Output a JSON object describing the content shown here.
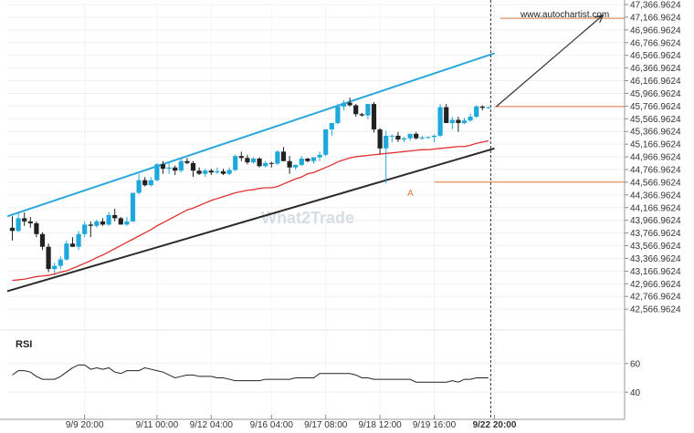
{
  "source_text": "www.autochartist.com",
  "watermark_text": "What2Trade",
  "rsi_label": "RSI",
  "rsi_ticks": [
    "60",
    "40"
  ],
  "colors": {
    "bull": "#1ea8dc",
    "bear": "#222222",
    "resistance": "#2aa8dc",
    "support": "#2b2b2b",
    "moving_average": "#e03030",
    "level": "#e2793a",
    "rsi_line": "#222222",
    "forecast_arrow": "#333333"
  },
  "chart_data": {
    "type": "candlestick",
    "title": "",
    "y_tick_labels": [
      "47,366.9624",
      "47,166.9624",
      "46,966.9624",
      "46,766.9624",
      "46,566.9624",
      "46,366.9624",
      "46,166.9624",
      "45,966.9624",
      "45,766.9624",
      "45,566.9624",
      "45,366.9624",
      "45,166.9624",
      "44,966.9624",
      "44,766.9624",
      "44,566.9624",
      "44,366.9624",
      "44,166.9624",
      "43,966.9624",
      "43,766.9624",
      "43,566.9624",
      "43,366.9624",
      "43,166.9624",
      "42,966.9624",
      "42,766.9624",
      "42,566.9624"
    ],
    "y_tick_values": [
      47366.9624,
      47166.9624,
      46966.9624,
      46766.9624,
      46566.9624,
      46366.9624,
      46166.9624,
      45966.9624,
      45766.9624,
      45566.9624,
      45366.9624,
      45166.9624,
      44966.9624,
      44766.9624,
      44566.9624,
      44366.9624,
      44166.9624,
      43966.9624,
      43766.9624,
      43566.9624,
      43366.9624,
      43166.9624,
      42966.9624,
      42766.9624,
      42566.9624
    ],
    "ylim": [
      42483,
      47367
    ],
    "x_tick_labels": [
      "9/9 20:00",
      "9/11 00:00",
      "9/12 04:00",
      "9/16 04:00",
      "9/17 08:00",
      "9/18 12:00",
      "9/19 16:00",
      "9/22 20:00"
    ],
    "x_tick_bars": [
      12,
      24,
      33,
      43,
      52,
      61,
      70,
      80
    ],
    "last_x_label_bold": true,
    "bar_count": 80,
    "candles": [
      [
        43850,
        44030,
        43650,
        43800
      ],
      [
        43800,
        44080,
        43780,
        44000
      ],
      [
        44000,
        44090,
        43880,
        43950
      ],
      [
        43950,
        44020,
        43850,
        43920
      ],
      [
        43920,
        43950,
        43700,
        43750
      ],
      [
        43750,
        43780,
        43500,
        43550
      ],
      [
        43550,
        43600,
        43150,
        43200
      ],
      [
        43200,
        43300,
        43100,
        43250
      ],
      [
        43250,
        43400,
        43200,
        43350
      ],
      [
        43350,
        43650,
        43330,
        43600
      ],
      [
        43600,
        43700,
        43550,
        43550
      ],
      [
        43550,
        43800,
        43500,
        43750
      ],
      [
        43750,
        43950,
        43700,
        43900
      ],
      [
        43900,
        43950,
        43700,
        43880
      ],
      [
        43880,
        43980,
        43850,
        43950
      ],
      [
        43950,
        44000,
        43880,
        43900
      ],
      [
        43900,
        44100,
        43880,
        44050
      ],
      [
        44050,
        44150,
        43950,
        44000
      ],
      [
        44000,
        44020,
        43900,
        43900
      ],
      [
        43900,
        44020,
        43880,
        43950
      ],
      [
        43950,
        44400,
        43940,
        44400
      ],
      [
        44400,
        44700,
        44380,
        44600
      ],
      [
        44600,
        44650,
        44500,
        44520
      ],
      [
        44520,
        44650,
        44500,
        44600
      ],
      [
        44600,
        44870,
        44580,
        44850
      ],
      [
        44850,
        44900,
        44700,
        44780
      ],
      [
        44780,
        44880,
        44700,
        44800
      ],
      [
        44800,
        44830,
        44680,
        44750
      ],
      [
        44750,
        44950,
        44720,
        44900
      ],
      [
        44900,
        44950,
        44850,
        44870
      ],
      [
        44870,
        44900,
        44650,
        44750
      ],
      [
        44750,
        44800,
        44680,
        44700
      ],
      [
        44700,
        44780,
        44650,
        44750
      ],
      [
        44750,
        44780,
        44680,
        44720
      ],
      [
        44720,
        44800,
        44700,
        44740
      ],
      [
        44740,
        44780,
        44680,
        44700
      ],
      [
        44700,
        44800,
        44680,
        44760
      ],
      [
        44760,
        45000,
        44740,
        44980
      ],
      [
        44980,
        45050,
        44900,
        44950
      ],
      [
        44950,
        45000,
        44850,
        44880
      ],
      [
        44880,
        44960,
        44860,
        44940
      ],
      [
        44940,
        44960,
        44800,
        44820
      ],
      [
        44820,
        44900,
        44800,
        44870
      ],
      [
        44870,
        44890,
        44800,
        44860
      ],
      [
        44860,
        45070,
        44840,
        45050
      ],
      [
        45050,
        45120,
        44900,
        44900
      ],
      [
        44900,
        44980,
        44700,
        44800
      ],
      [
        44800,
        44850,
        44760,
        44840
      ],
      [
        44840,
        44980,
        44820,
        44940
      ],
      [
        44940,
        44950,
        44880,
        44900
      ],
      [
        44900,
        44960,
        44860,
        44960
      ],
      [
        44960,
        45050,
        44900,
        45000
      ],
      [
        45000,
        45400,
        44980,
        45400
      ],
      [
        45400,
        45500,
        45300,
        45500
      ],
      [
        45500,
        45800,
        45480,
        45760
      ],
      [
        45760,
        45860,
        45700,
        45820
      ],
      [
        45820,
        45900,
        45760,
        45780
      ],
      [
        45780,
        45800,
        45600,
        45640
      ],
      [
        45640,
        45660,
        45600,
        45620
      ],
      [
        45620,
        45800,
        45560,
        45800
      ],
      [
        45800,
        45830,
        45350,
        45400
      ],
      [
        45400,
        45420,
        45000,
        45100
      ],
      [
        45100,
        45380,
        44550,
        45300
      ],
      [
        45300,
        45320,
        45200,
        45300
      ],
      [
        45300,
        45360,
        45200,
        45240
      ],
      [
        45240,
        45280,
        45200,
        45260
      ],
      [
        45260,
        45330,
        45220,
        45330
      ],
      [
        45330,
        45360,
        45240,
        45260
      ],
      [
        45260,
        45300,
        45240,
        45270
      ],
      [
        45270,
        45290,
        45250,
        45280
      ],
      [
        45280,
        45320,
        45200,
        45300
      ],
      [
        45300,
        45800,
        45280,
        45750
      ],
      [
        45750,
        45800,
        45500,
        45500
      ],
      [
        45500,
        45600,
        45400,
        45550
      ],
      [
        45550,
        45600,
        45360,
        45500
      ],
      [
        45500,
        45580,
        45480,
        45540
      ],
      [
        45540,
        45650,
        45520,
        45600
      ],
      [
        45600,
        45780,
        45580,
        45760
      ],
      [
        45760,
        45780,
        45700,
        45740
      ],
      [
        45740,
        45760,
        45720,
        45750
      ]
    ],
    "moving_average": [
      43020,
      43030,
      43040,
      43060,
      43080,
      43090,
      43100,
      43120,
      43150,
      43170,
      43210,
      43250,
      43290,
      43330,
      43380,
      43420,
      43470,
      43520,
      43570,
      43620,
      43670,
      43720,
      43770,
      43820,
      43880,
      43930,
      43980,
      44030,
      44080,
      44130,
      44160,
      44200,
      44240,
      44280,
      44310,
      44340,
      44370,
      44400,
      44420,
      44440,
      44450,
      44470,
      44480,
      44480,
      44500,
      44540,
      44580,
      44620,
      44650,
      44700,
      44720,
      44760,
      44800,
      44840,
      44890,
      44920,
      44950,
      44970,
      44980,
      44990,
      45000,
      45010,
      45020,
      45030,
      45040,
      45050,
      45060,
      45070,
      45080,
      45080,
      45090,
      45100,
      45110,
      45120,
      45130,
      45130,
      45150,
      45180,
      45200,
      45220
    ],
    "resistance_line": [
      [
        0,
        44030
      ],
      [
        80,
        46600
      ]
    ],
    "support_line": [
      [
        0,
        42850
      ],
      [
        80,
        45100
      ]
    ],
    "levels": [
      {
        "from_bar": 70,
        "value": 44570
      },
      {
        "from_bar": 80,
        "value": 45760
      },
      {
        "from_bar": 81,
        "value": 47150
      }
    ],
    "forecast": {
      "from": [
        80,
        45760
      ],
      "to": [
        98,
        47200
      ]
    },
    "pattern_point": {
      "label": "A",
      "bar": 66,
      "value": 44550
    },
    "rsi": [
      52,
      55,
      55,
      54,
      51,
      49,
      49,
      49,
      51,
      54,
      57,
      59,
      59,
      56,
      57,
      56,
      57,
      54,
      53,
      55,
      55,
      55,
      57,
      56,
      55,
      54,
      52,
      50,
      51,
      52,
      52,
      51,
      51,
      51,
      50,
      50,
      49,
      48,
      48,
      48,
      48,
      48,
      49,
      49,
      49,
      49,
      49,
      50,
      50,
      50,
      50,
      53,
      53,
      53,
      53,
      53,
      53,
      52,
      50,
      50,
      49,
      49,
      49,
      49,
      49,
      49,
      49,
      47,
      47,
      47,
      47,
      47,
      47,
      48,
      47,
      49,
      49,
      50,
      50,
      50
    ],
    "rsi_ylim": [
      30,
      70
    ],
    "rsi_tick_values": [
      60,
      40
    ]
  }
}
